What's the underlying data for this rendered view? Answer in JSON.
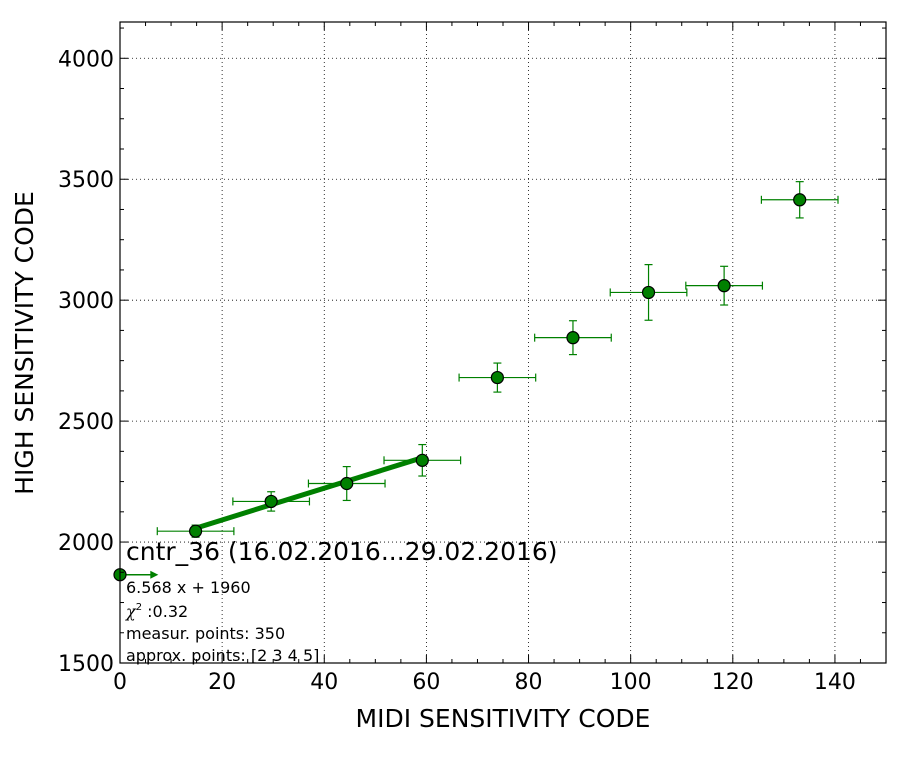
{
  "chart_data": {
    "type": "scatter",
    "title": "cntr_36 (16.02.2016...29.02.2016)",
    "xlabel": "MIDI SENSITIVITY CODE",
    "ylabel": "HIGH SENSITIVITY CODE",
    "xlim": [
      0,
      150
    ],
    "ylim": [
      1500,
      4150
    ],
    "xticks": [
      0,
      20,
      40,
      60,
      80,
      100,
      120,
      140
    ],
    "yticks": [
      1500,
      2000,
      2500,
      3000,
      3500,
      4000
    ],
    "xtick_labels": [
      "0",
      "20",
      "40",
      "60",
      "80",
      "100",
      "120",
      "140"
    ],
    "ytick_labels": [
      "1500",
      "2000",
      "2500",
      "3000",
      "3500",
      "4000"
    ],
    "grid": true,
    "colors": {
      "marker": "#008000",
      "fit_line": "#008000",
      "errorbar": "#008000"
    },
    "points": [
      {
        "x": 0,
        "y": 1865,
        "xerr": 7.5,
        "yerr": 0
      },
      {
        "x": 14.8,
        "y": 2045,
        "xerr": 7.5,
        "yerr": 25
      },
      {
        "x": 29.6,
        "y": 2168,
        "xerr": 7.5,
        "yerr": 40
      },
      {
        "x": 44.4,
        "y": 2242,
        "xerr": 7.5,
        "yerr": 70
      },
      {
        "x": 59.2,
        "y": 2338,
        "xerr": 7.5,
        "yerr": 65
      },
      {
        "x": 73.9,
        "y": 2680,
        "xerr": 7.5,
        "yerr": 60
      },
      {
        "x": 88.7,
        "y": 2845,
        "xerr": 7.5,
        "yerr": 70
      },
      {
        "x": 103.5,
        "y": 3032,
        "xerr": 7.5,
        "yerr": 115
      },
      {
        "x": 118.3,
        "y": 3060,
        "xerr": 7.5,
        "yerr": 80
      },
      {
        "x": 133.1,
        "y": 3415,
        "xerr": 7.5,
        "yerr": 75
      }
    ],
    "fit": {
      "slope": 6.568,
      "intercept": 1960,
      "x_range": [
        14.8,
        59.2
      ]
    },
    "annotations": {
      "equation": "6.568 x + 1960",
      "chi2_symbol": "χ",
      "chi2_exponent": "2",
      "chi2_value": " :0.32",
      "measur_points": "measur. points: 350",
      "approx_points": "approx. points: [2 3 4 5]"
    }
  }
}
